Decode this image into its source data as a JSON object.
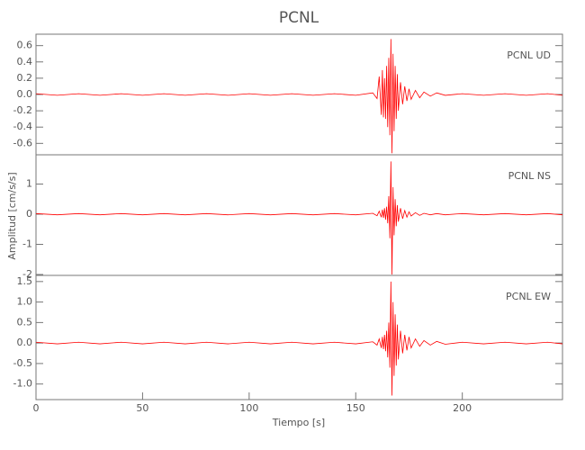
{
  "chart_data": [
    {
      "type": "line",
      "title": "PCNL",
      "label": "PCNL   UD",
      "color": "#ff0000",
      "x": [
        0,
        10,
        20,
        30,
        40,
        50,
        60,
        70,
        80,
        90,
        100,
        110,
        120,
        130,
        140,
        150,
        158,
        160,
        161,
        162,
        162.5,
        163,
        163.5,
        164,
        164.5,
        165,
        165.5,
        166,
        166.5,
        167,
        167.5,
        168,
        168.5,
        169,
        169.5,
        170,
        171,
        172,
        173,
        174,
        175,
        176,
        178,
        180,
        182,
        185,
        188,
        192,
        200,
        210,
        220,
        230,
        240,
        247
      ],
      "values": [
        0.01,
        -0.01,
        0.01,
        -0.01,
        0.01,
        -0.01,
        0.01,
        -0.01,
        0.01,
        -0.01,
        0.01,
        -0.01,
        0.01,
        -0.01,
        0.01,
        -0.01,
        0.02,
        -0.05,
        0.22,
        -0.25,
        0.3,
        -0.28,
        0.2,
        -0.3,
        0.35,
        -0.4,
        0.45,
        -0.5,
        0.68,
        -0.72,
        0.5,
        -0.45,
        0.35,
        -0.3,
        0.25,
        -0.2,
        0.15,
        -0.12,
        0.1,
        -0.08,
        0.07,
        -0.06,
        0.05,
        -0.04,
        0.03,
        -0.02,
        0.02,
        -0.01,
        0.01,
        -0.01,
        0.01,
        -0.01,
        0.01,
        -0.01
      ],
      "xlim": [
        0,
        247
      ],
      "ylim": [
        -0.74,
        0.74
      ],
      "yticks": [
        -0.6,
        -0.4,
        -0.2,
        {
          "value": 0,
          "label": "0.0"
        },
        0.2,
        0.4,
        0.6
      ]
    },
    {
      "type": "line",
      "ylabel": "Amplitud [cm/s/s]",
      "label": "PCNL   NS",
      "color": "#ff0000",
      "x": [
        0,
        10,
        20,
        30,
        40,
        50,
        60,
        70,
        80,
        90,
        100,
        110,
        120,
        130,
        140,
        150,
        158,
        160,
        161,
        162,
        162.5,
        163,
        163.5,
        164,
        164.5,
        165,
        165.5,
        166,
        166.5,
        167,
        167.5,
        168,
        168.5,
        169,
        169.5,
        170,
        171,
        172,
        173,
        174,
        175,
        176,
        178,
        180,
        182,
        185,
        188,
        192,
        200,
        210,
        220,
        230,
        240,
        247
      ],
      "values": [
        0.02,
        -0.02,
        0.02,
        -0.02,
        0.02,
        -0.02,
        0.02,
        -0.02,
        0.02,
        -0.02,
        0.02,
        -0.02,
        0.02,
        -0.02,
        0.02,
        -0.02,
        0.03,
        -0.05,
        0.1,
        -0.1,
        0.15,
        -0.12,
        0.2,
        -0.18,
        0.25,
        -0.3,
        0.6,
        -0.8,
        1.75,
        -2.0,
        0.9,
        -0.7,
        0.5,
        -0.4,
        0.3,
        -0.25,
        0.2,
        -0.15,
        0.12,
        -0.1,
        0.08,
        -0.06,
        0.05,
        -0.04,
        0.03,
        -0.02,
        0.02,
        -0.02,
        0.02,
        -0.02,
        0.02,
        -0.02,
        0.02,
        -0.02
      ],
      "xlim": [
        0,
        247
      ],
      "ylim": [
        -2.03,
        1.97
      ],
      "yticks": [
        -2,
        -1,
        0,
        1
      ]
    },
    {
      "type": "line",
      "xlabel": "Tiempo [s]",
      "label": "PCNL   EW",
      "color": "#ff0000",
      "x": [
        0,
        10,
        20,
        30,
        40,
        50,
        60,
        70,
        80,
        90,
        100,
        110,
        120,
        130,
        140,
        150,
        158,
        160,
        161,
        162,
        162.5,
        163,
        163.5,
        164,
        164.5,
        165,
        165.5,
        166,
        166.5,
        167,
        167.5,
        168,
        168.5,
        169,
        169.5,
        170,
        171,
        172,
        173,
        174,
        175,
        176,
        178,
        180,
        182,
        185,
        188,
        192,
        200,
        210,
        220,
        230,
        240,
        247
      ],
      "values": [
        0.02,
        -0.02,
        0.02,
        -0.02,
        0.02,
        -0.02,
        0.02,
        -0.02,
        0.02,
        -0.02,
        0.02,
        -0.02,
        0.02,
        -0.02,
        0.02,
        -0.02,
        0.03,
        -0.05,
        0.1,
        -0.12,
        0.15,
        -0.15,
        0.2,
        -0.2,
        0.3,
        -0.35,
        0.5,
        -0.6,
        1.5,
        -1.28,
        1.0,
        -0.8,
        0.7,
        -0.55,
        0.45,
        -0.4,
        0.3,
        -0.25,
        0.2,
        -0.18,
        0.15,
        -0.12,
        0.1,
        -0.08,
        0.06,
        -0.05,
        0.04,
        -0.03,
        0.02,
        -0.02,
        0.02,
        -0.02,
        0.02,
        -0.02
      ],
      "xlim": [
        0,
        247
      ],
      "ylim": [
        -1.38,
        1.65
      ],
      "yticks": [
        {
          "value": -1,
          "label": "-1.0"
        },
        -0.5,
        {
          "value": 0,
          "label": "0.0"
        },
        0.5,
        {
          "value": 1,
          "label": "1.0"
        },
        1.5
      ],
      "xticks": [
        0,
        50,
        100,
        150,
        200
      ]
    }
  ]
}
